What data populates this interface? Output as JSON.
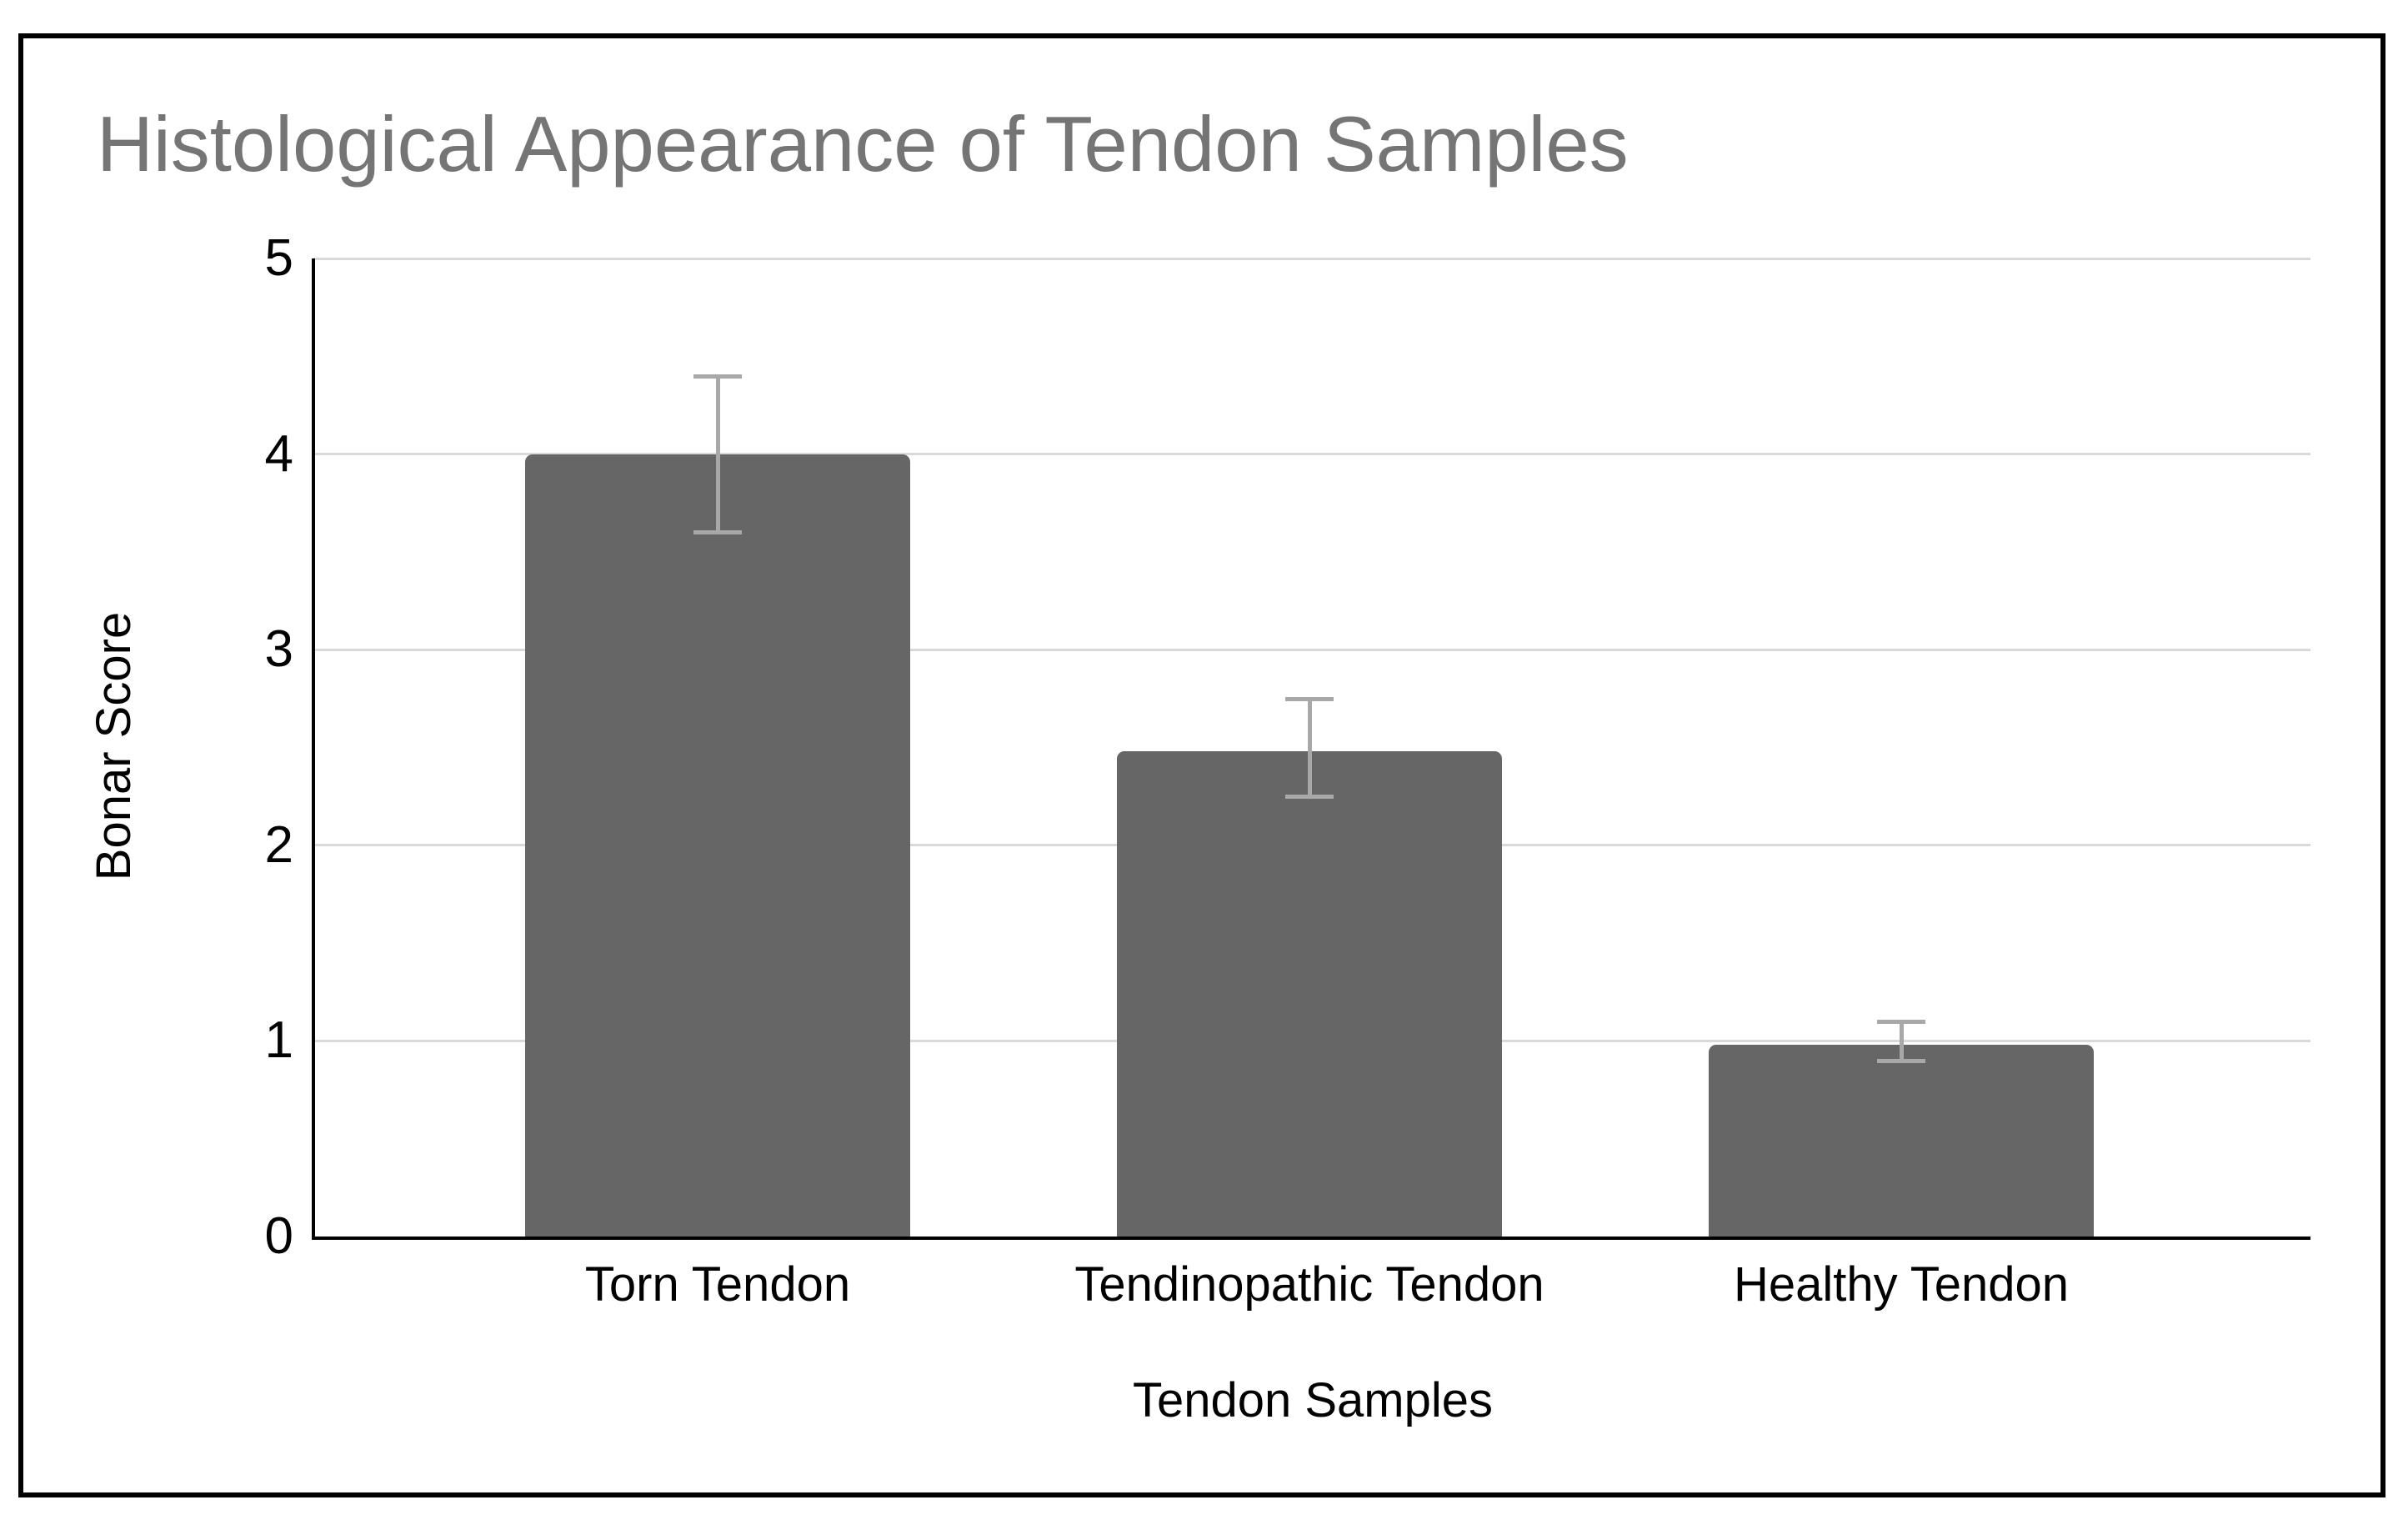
{
  "chart_data": {
    "type": "bar",
    "title": "Histological Appearance of Tendon Samples",
    "xlabel": "Tendon Samples",
    "ylabel": "Bonar Score",
    "categories": [
      "Torn Tendon",
      "Tendinopathic Tendon",
      "Healthy Tendon"
    ],
    "values": [
      4.0,
      2.48,
      0.98
    ],
    "error_low": [
      3.6,
      2.25,
      0.9
    ],
    "error_high": [
      4.4,
      2.75,
      1.1
    ],
    "yticks": [
      0,
      1,
      2,
      3,
      4,
      5
    ],
    "ylim": [
      0,
      5
    ],
    "grid": true,
    "legend": "none",
    "colors": {
      "bar": "#666666",
      "error_bar": "#a8a8a8",
      "gridline": "#d9d9d9",
      "axis": "#000000",
      "tick_label": "#000000",
      "axis_title": "#000000",
      "title": "#757575",
      "frame_border": "#000000",
      "background": "#ffffff"
    }
  }
}
